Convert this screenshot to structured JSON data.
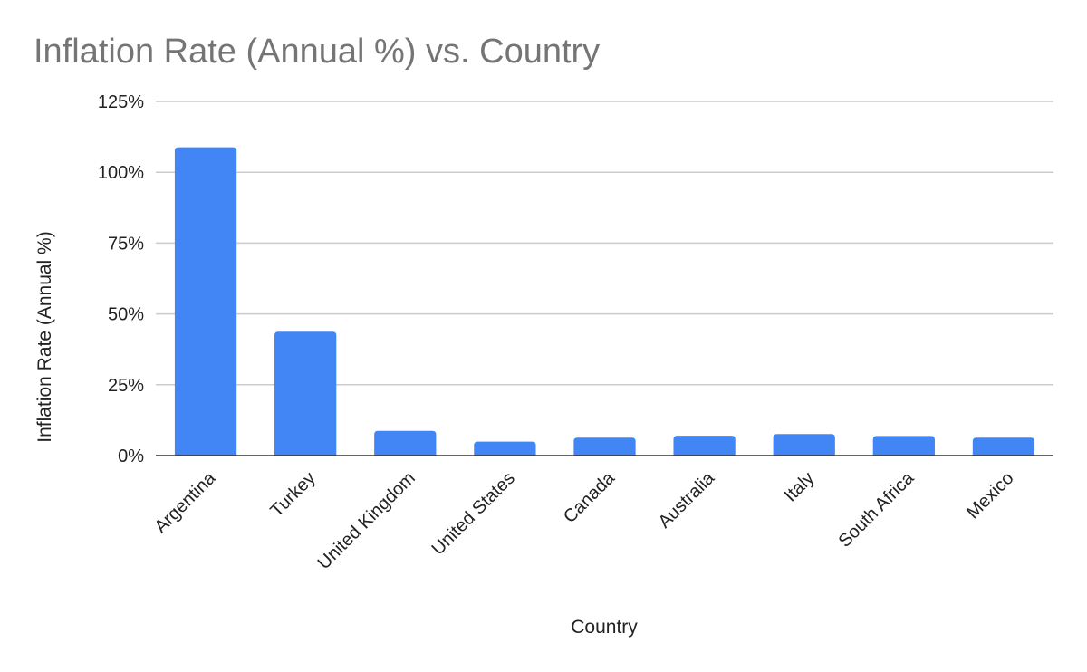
{
  "chart_data": {
    "type": "bar",
    "title": "Inflation Rate (Annual %) vs. Country",
    "xlabel": "Country",
    "ylabel": "Inflation Rate (Annual %)",
    "categories": [
      "Argentina",
      "Turkey",
      "United Kingdom",
      "United States",
      "Canada",
      "Australia",
      "Italy",
      "South Africa",
      "Mexico"
    ],
    "values": [
      108.8,
      43.7,
      8.7,
      4.9,
      6.3,
      7.0,
      7.6,
      6.9,
      6.3
    ],
    "ylim": [
      0,
      125
    ],
    "yticks": [
      "0%",
      "25%",
      "50%",
      "75%",
      "100%",
      "125%"
    ],
    "bar_color": "#4285f4",
    "grid": true,
    "legend": "none"
  }
}
